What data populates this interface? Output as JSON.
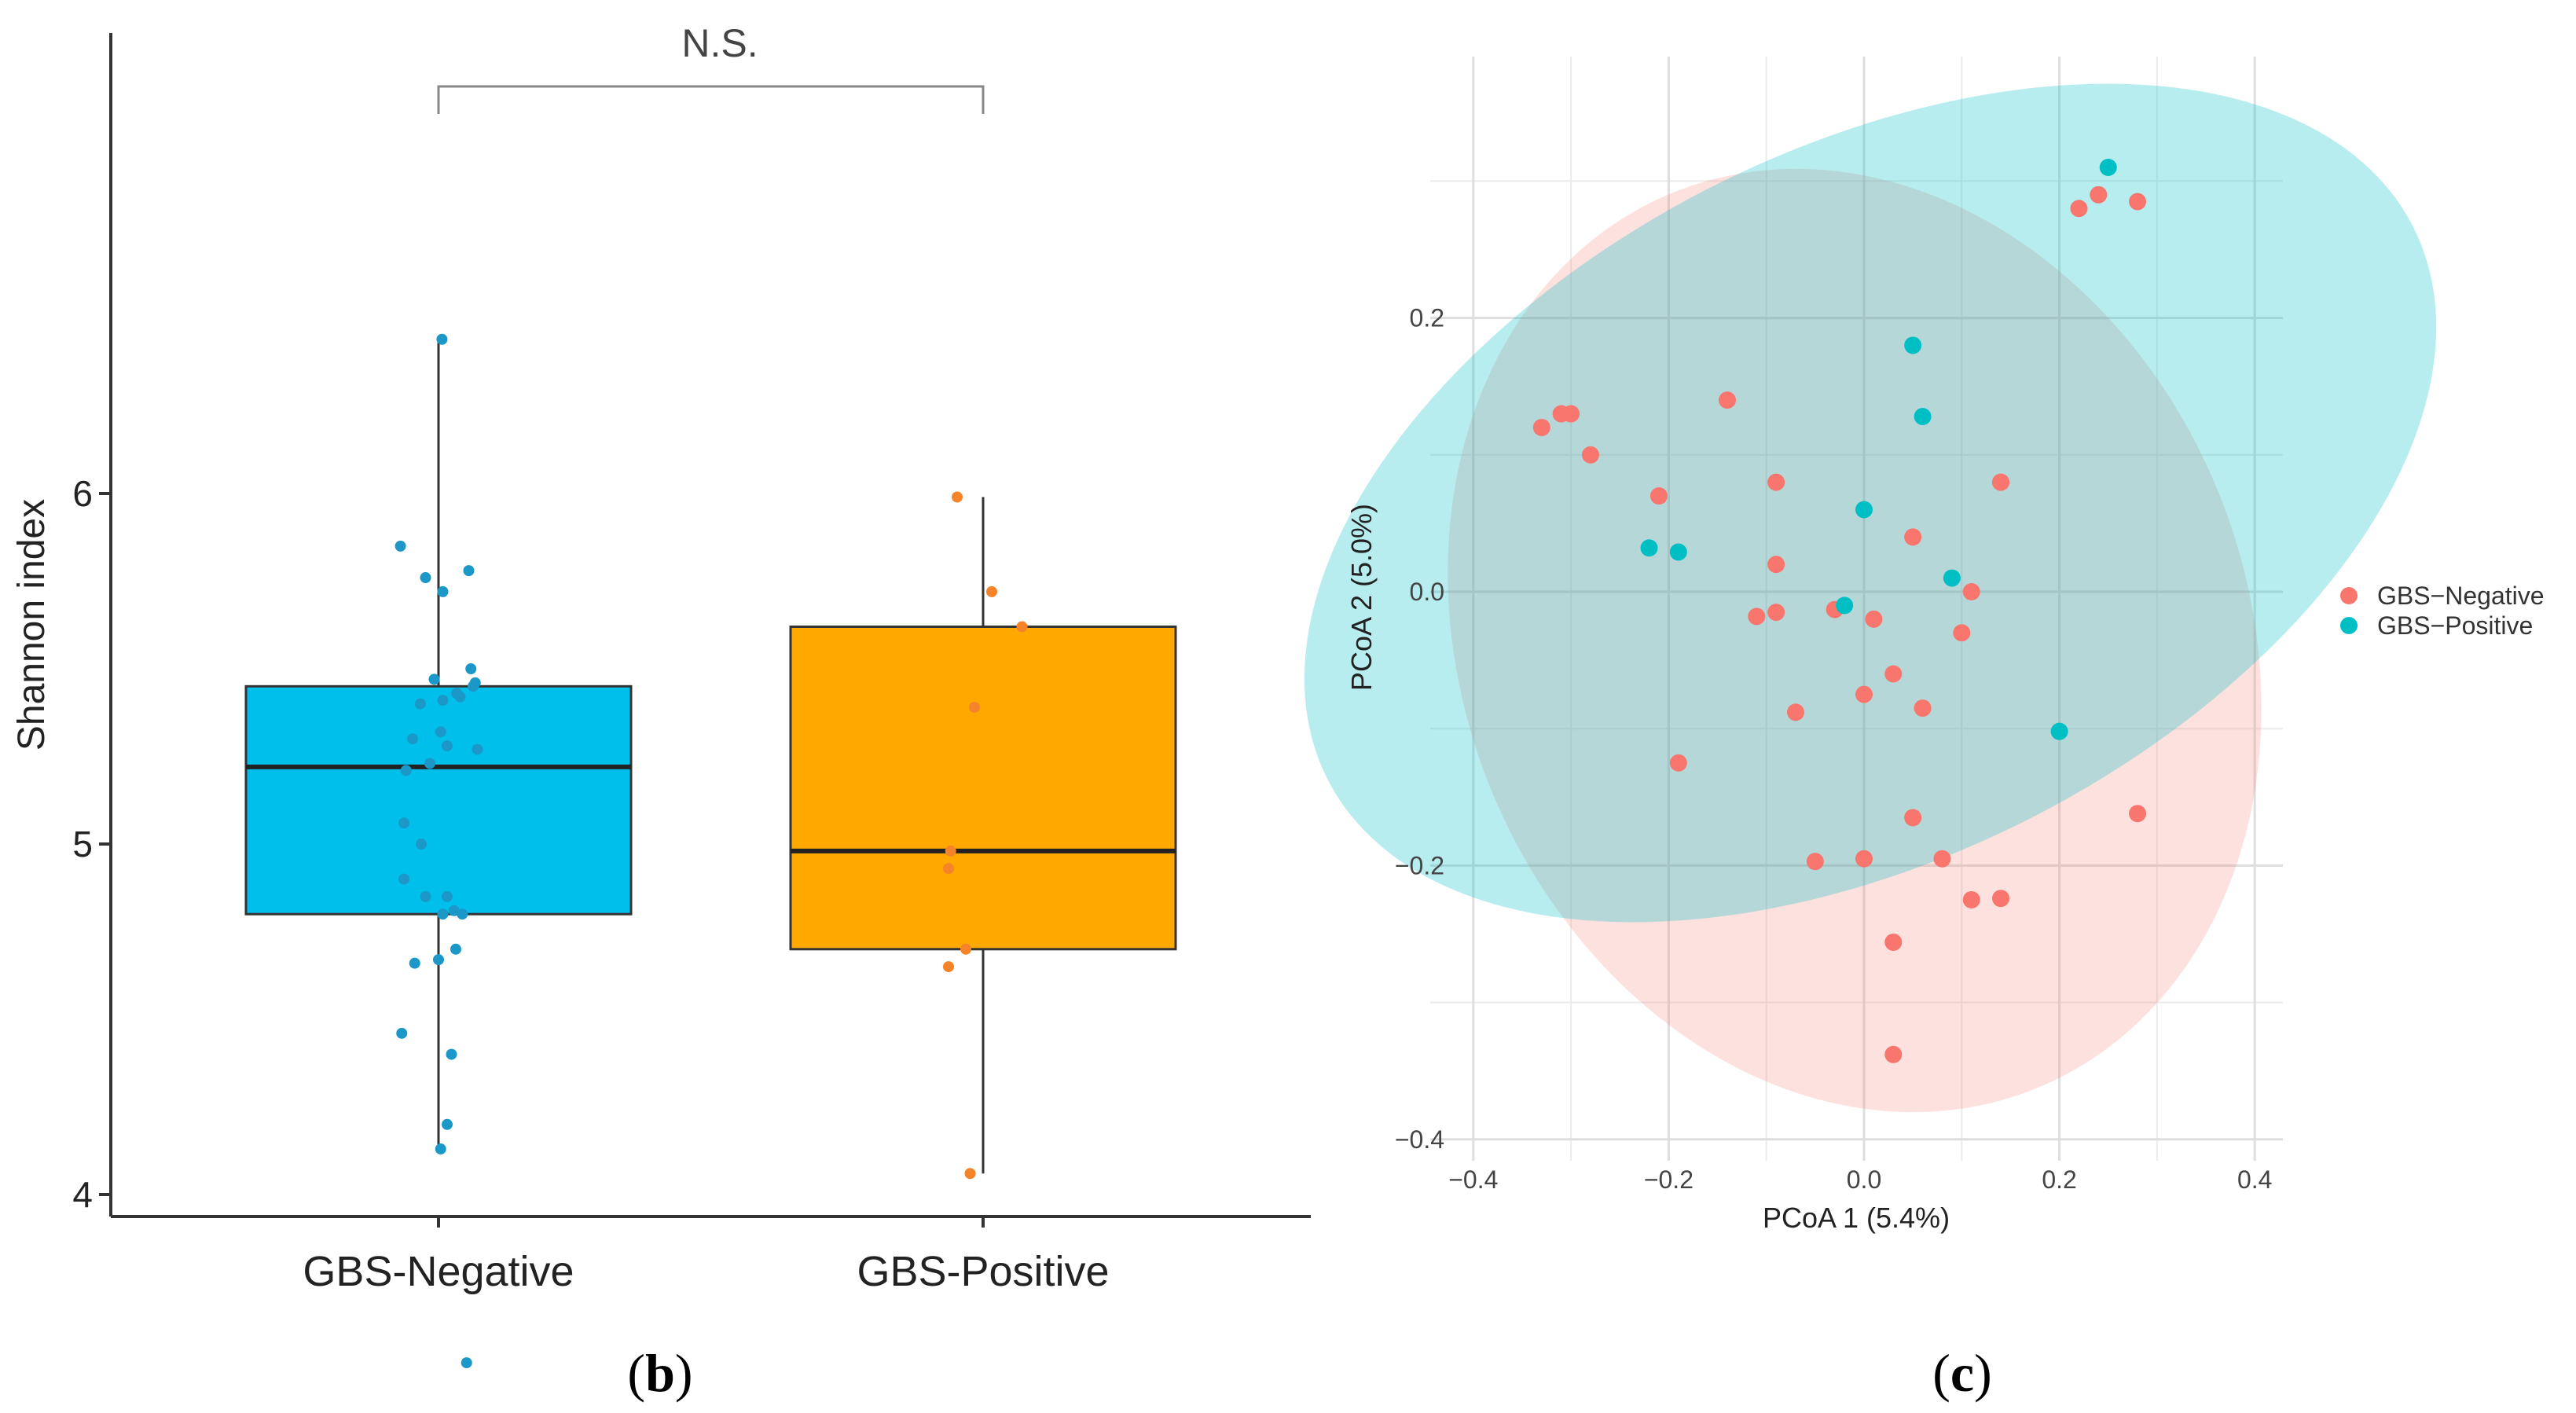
{
  "chart_data": [
    {
      "type": "box",
      "panel_label_open": "(",
      "panel_label_letter": "b",
      "panel_label_close": ")",
      "title": "",
      "ylabel": "Shannon index",
      "xlabel": "",
      "categories": [
        "GBS-Negative",
        "GBS-Positive"
      ],
      "ylim": [
        3.4,
        6.75
      ],
      "yticks": [
        4,
        5,
        6
      ],
      "significance": "N.S.",
      "boxes": [
        {
          "category": "GBS-Negative",
          "color": "#00BFEA",
          "point_color": "#1B98C7",
          "whisker_low": 4.13,
          "q1": 4.8,
          "median": 5.22,
          "q3": 5.45,
          "whisker_high": 6.43
        },
        {
          "category": "GBS-Positive",
          "color": "#FFA800",
          "point_color": "#F5832A",
          "whisker_low": 4.06,
          "q1": 4.7,
          "median": 4.98,
          "q3": 5.62,
          "whisker_high": 5.99
        }
      ],
      "points": [
        {
          "category": "GBS-Negative",
          "y": [
            6.44,
            5.85,
            5.78,
            5.76,
            5.72,
            5.5,
            5.47,
            5.46,
            5.45,
            5.43,
            5.42,
            5.41,
            5.4,
            5.32,
            5.3,
            5.28,
            5.27,
            5.23,
            5.21,
            5.06,
            5.0,
            4.9,
            4.85,
            4.85,
            4.81,
            4.8,
            4.8,
            4.7,
            4.67,
            4.66,
            4.46,
            4.4,
            4.2,
            4.13,
            3.52
          ]
        },
        {
          "category": "GBS-Positive",
          "y": [
            5.99,
            5.72,
            5.62,
            5.39,
            4.98,
            4.93,
            4.7,
            4.65,
            4.06
          ]
        }
      ]
    },
    {
      "type": "scatter",
      "panel_label_open": "(",
      "panel_label_letter": "c",
      "panel_label_close": ")",
      "title": "",
      "xlabel": "PCoA 1 (5.4%)",
      "ylabel": "PCoA 2 (5.0%)",
      "xlim": [
        -0.44,
        0.44
      ],
      "ylim": [
        -0.41,
        0.37
      ],
      "xticks": [
        -0.4,
        -0.2,
        0.0,
        0.2,
        0.4
      ],
      "xtick_labels": [
        "−0.4",
        "−0.2",
        "0.0",
        "0.2",
        "0.4"
      ],
      "yticks": [
        -0.4,
        -0.2,
        0.0,
        0.2
      ],
      "ytick_labels": [
        "−0.4",
        "−0.2",
        "0.0",
        "0.2"
      ],
      "grid": true,
      "legend_position": "right",
      "series": [
        {
          "name": "GBS−Negative",
          "color": "#F8766D",
          "points": [
            [
              -0.33,
              0.12
            ],
            [
              -0.3,
              0.13
            ],
            [
              -0.31,
              0.13
            ],
            [
              -0.28,
              0.1
            ],
            [
              -0.21,
              0.07
            ],
            [
              -0.14,
              0.14
            ],
            [
              -0.09,
              0.08
            ],
            [
              -0.09,
              0.02
            ],
            [
              -0.09,
              -0.015
            ],
            [
              -0.11,
              -0.018
            ],
            [
              -0.03,
              -0.013
            ],
            [
              0.01,
              -0.02
            ],
            [
              0.05,
              0.04
            ],
            [
              0.14,
              0.08
            ],
            [
              0.14,
              0.08
            ],
            [
              0.11,
              0.0
            ],
            [
              0.1,
              -0.03
            ],
            [
              0.03,
              -0.06
            ],
            [
              0.0,
              -0.075
            ],
            [
              0.06,
              -0.085
            ],
            [
              -0.07,
              -0.088
            ],
            [
              -0.19,
              -0.125
            ],
            [
              0.05,
              -0.165
            ],
            [
              0.28,
              -0.162
            ],
            [
              -0.05,
              -0.197
            ],
            [
              0.0,
              -0.195
            ],
            [
              0.08,
              -0.195
            ],
            [
              0.14,
              -0.224
            ],
            [
              0.11,
              -0.225
            ],
            [
              0.03,
              -0.256
            ],
            [
              0.03,
              -0.338
            ],
            [
              0.22,
              0.28
            ],
            [
              0.24,
              0.29
            ],
            [
              0.28,
              0.285
            ]
          ]
        },
        {
          "name": "GBS−Positive",
          "color": "#00BFC4",
          "points": [
            [
              0.25,
              0.31
            ],
            [
              0.05,
              0.18
            ],
            [
              0.06,
              0.128
            ],
            [
              0.0,
              0.06
            ],
            [
              -0.22,
              0.032
            ],
            [
              -0.19,
              0.029
            ],
            [
              0.09,
              0.01
            ],
            [
              -0.02,
              -0.01
            ],
            [
              0.2,
              -0.102
            ]
          ]
        }
      ],
      "ellipses": [
        {
          "series": "GBS−Negative",
          "color": "#F8766D"
        },
        {
          "series": "GBS−Positive",
          "color": "#00BFC4"
        }
      ]
    }
  ]
}
